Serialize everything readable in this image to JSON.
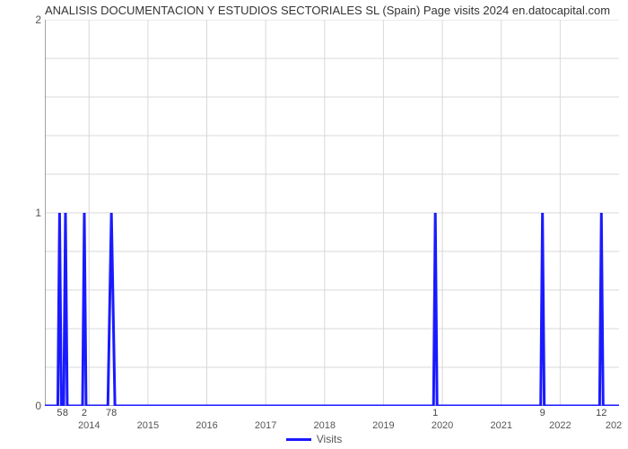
{
  "title": "ANALISIS DOCUMENTACION Y ESTUDIOS SECTORIALES SL (Spain) Page visits 2024 en.datocapital.com",
  "chart": {
    "type": "line",
    "background_color": "#ffffff",
    "grid_color": "#d9d9d9",
    "axis_color": "#666666",
    "line_color": "#1a1aff",
    "line_width": 3,
    "xlim_year_start": 2013.25,
    "xlim_year_end": 2023.0,
    "ylim": [
      0,
      2
    ],
    "ytick_values": [
      0,
      1,
      2
    ],
    "xtick_years": [
      2014,
      2015,
      2016,
      2017,
      2018,
      2019,
      2020,
      2021,
      2022
    ],
    "xtick_extra_right": "202",
    "spikes": [
      {
        "x_year": 2013.5,
        "value": 1,
        "label": "5",
        "half_width_year": 0.03
      },
      {
        "x_year": 2013.6,
        "value": 1,
        "label": "8",
        "half_width_year": 0.03
      },
      {
        "x_year": 2013.92,
        "value": 1,
        "label": "2",
        "half_width_year": 0.03
      },
      {
        "x_year": 2014.38,
        "value": 1,
        "label": "78",
        "half_width_year": 0.06
      },
      {
        "x_year": 2019.88,
        "value": 1,
        "label": "1",
        "half_width_year": 0.03
      },
      {
        "x_year": 2021.7,
        "value": 1,
        "label": "9",
        "half_width_year": 0.03
      },
      {
        "x_year": 2022.7,
        "value": 1,
        "label": "12",
        "half_width_year": 0.03
      }
    ],
    "title_fontsize": 13,
    "tick_fontsize": 11
  },
  "legend": {
    "label": "Visits",
    "color": "#1a1aff"
  }
}
